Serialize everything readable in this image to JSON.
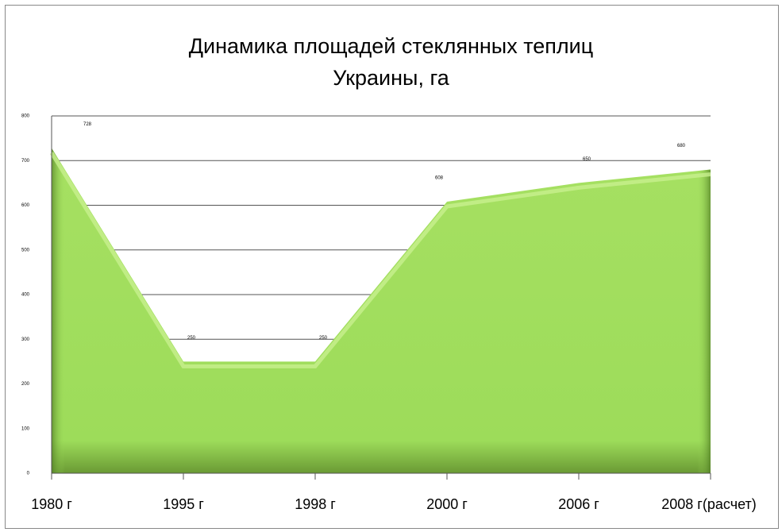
{
  "chart_data": {
    "type": "area",
    "title": "Динамика площадей стеклянных теплиц\nУкраины,  га",
    "categories": [
      "1980 г",
      "1995 г",
      "1998 г",
      "2000 г",
      "2006 г",
      "2008 г(расчет)"
    ],
    "values": [
      728,
      250,
      250,
      608,
      650,
      680
    ],
    "color": "#9ddc5a",
    "ylim": [
      0,
      800
    ],
    "yticks": [
      0,
      100,
      200,
      300,
      400,
      500,
      600,
      700,
      800
    ],
    "grid": true
  }
}
